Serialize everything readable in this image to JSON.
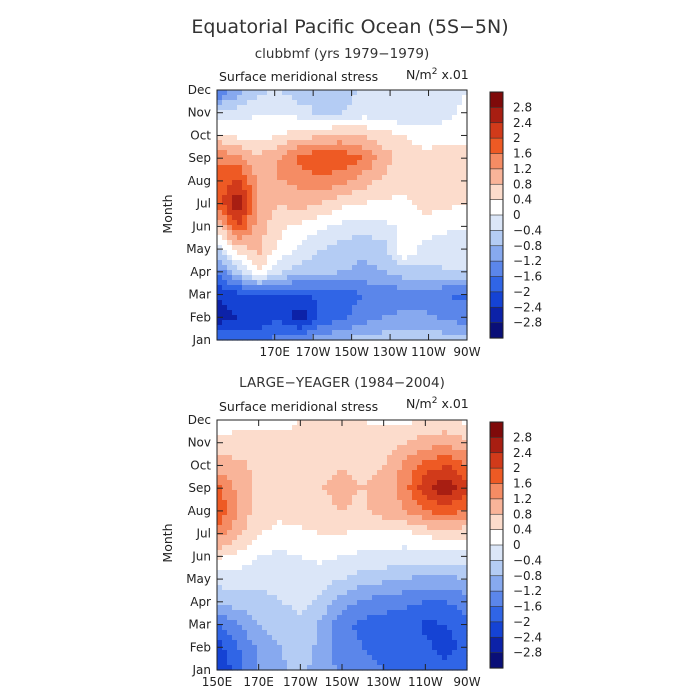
{
  "figure": {
    "title": "Equatorial Pacific Ocean (5S−5N)"
  },
  "legend_colors": [
    "#7f0a0a",
    "#a81e12",
    "#d13a1a",
    "#ee5a24",
    "#f58c64",
    "#f9b499",
    "#fcdccc",
    "#ffffff",
    "#dbe6f8",
    "#b4ccf4",
    "#87a9ef",
    "#5b86ea",
    "#3065e6",
    "#1543d4",
    "#0c22a8",
    "#0a0f78"
  ],
  "chart_data": [
    {
      "type": "heatmap",
      "subtitle": "clubbmf (yrs 1979−1979)",
      "panel_label": "Surface meridional stress",
      "unit_label": "N/m² x.01",
      "ylabel": "Month",
      "xlabel": "",
      "y_ticks": [
        "Jan",
        "Feb",
        "Mar",
        "Apr",
        "May",
        "Jun",
        "Jul",
        "Aug",
        "Sep",
        "Oct",
        "Nov",
        "Dec"
      ],
      "x_tick_labels": [
        "170E",
        "170W",
        "150W",
        "130W",
        "110W",
        "90W"
      ],
      "x_domain_lon": [
        140,
        270
      ],
      "x_tick_lons": [
        170,
        190,
        210,
        230,
        250,
        270
      ],
      "levels": [
        2.8,
        2.4,
        2,
        1.6,
        1.2,
        0.8,
        0.4,
        0,
        -0.4,
        -0.8,
        -1.2,
        -1.6,
        -2,
        -2.4,
        -2.8
      ],
      "level_labels": [
        "2.8",
        "2.4",
        "2",
        "1.6",
        "1.2",
        "0.8",
        "0.4",
        "0",
        "−0.4",
        "−0.8",
        "−1.2",
        "−1.6",
        "−2",
        "−2.4",
        "−2.8"
      ],
      "grid_x_lon": [
        140,
        151,
        162,
        173,
        184,
        195,
        206,
        217,
        228,
        239,
        250,
        261,
        270
      ],
      "grid_y_month": [
        "Jan",
        "Feb",
        "Mar",
        "Apr",
        "May",
        "Jun",
        "Jul",
        "Aug",
        "Sep",
        "Oct",
        "Nov",
        "Dec"
      ],
      "values": [
        [
          -1.6,
          -1.8,
          -1.8,
          -1.4,
          -1.2,
          -1.0,
          -0.8,
          -0.6,
          -0.6,
          -0.5,
          -0.5,
          -0.6,
          -0.7
        ],
        [
          -2.7,
          -2.4,
          -2.2,
          -2.1,
          -2.7,
          -1.9,
          -1.7,
          -1.4,
          -1.2,
          -1.1,
          -1.1,
          -1.3,
          -1.4
        ],
        [
          -2.3,
          -2.1,
          -2.0,
          -2.0,
          -2.0,
          -1.9,
          -1.8,
          -1.6,
          -1.5,
          -1.4,
          -1.4,
          -1.6,
          -1.7
        ],
        [
          -1.5,
          -0.6,
          0.4,
          -0.3,
          -0.6,
          -0.7,
          -0.8,
          -0.9,
          -0.8,
          -0.6,
          -0.5,
          -0.4,
          -0.4
        ],
        [
          -0.4,
          0.6,
          0.9,
          0.3,
          -0.1,
          -0.4,
          -0.6,
          -0.7,
          -0.6,
          0.4,
          -0.2,
          -0.3,
          -0.2
        ],
        [
          0.6,
          2.0,
          1.0,
          0.5,
          0.3,
          0.1,
          -0.1,
          -0.2,
          -0.1,
          0.1,
          0.3,
          0.1,
          0.0
        ],
        [
          1.8,
          2.8,
          1.0,
          0.8,
          1.0,
          0.8,
          0.5,
          0.4,
          0.3,
          0.3,
          0.5,
          0.5,
          0.4
        ],
        [
          1.6,
          2.2,
          1.0,
          1.2,
          1.3,
          1.5,
          1.3,
          1.0,
          0.7,
          0.6,
          0.7,
          0.8,
          0.6
        ],
        [
          1.6,
          1.3,
          0.9,
          1.2,
          1.8,
          2.0,
          1.9,
          1.6,
          1.0,
          0.6,
          0.5,
          0.7,
          0.5
        ],
        [
          0.5,
          0.3,
          0.2,
          0.4,
          0.6,
          0.8,
          0.9,
          0.8,
          0.6,
          0.4,
          0.2,
          0.2,
          0.3
        ],
        [
          -0.2,
          -0.2,
          0.0,
          0.0,
          -0.2,
          -0.5,
          -0.4,
          -0.2,
          -0.3,
          -0.4,
          -0.3,
          -0.1,
          0.1
        ],
        [
          -1.8,
          -1.0,
          -0.5,
          -0.4,
          -0.7,
          -0.5,
          -0.6,
          -0.3,
          -0.2,
          -0.3,
          -0.2,
          -0.1,
          0.0
        ]
      ]
    },
    {
      "type": "heatmap",
      "subtitle": "LARGE−YEAGER (1984−2004)",
      "panel_label": "Surface meridional stress",
      "unit_label": "N/m² x.01",
      "ylabel": "Month",
      "xlabel": "",
      "y_ticks": [
        "Jan",
        "Feb",
        "Mar",
        "Apr",
        "May",
        "Jun",
        "Jul",
        "Aug",
        "Sep",
        "Oct",
        "Nov",
        "Dec"
      ],
      "x_tick_labels": [
        "150E",
        "170E",
        "170W",
        "150W",
        "130W",
        "110W",
        "90W"
      ],
      "x_domain_lon": [
        150,
        270
      ],
      "x_tick_lons": [
        150,
        170,
        190,
        210,
        230,
        250,
        270
      ],
      "levels": [
        2.8,
        2.4,
        2,
        1.6,
        1.2,
        0.8,
        0.4,
        0,
        -0.4,
        -0.8,
        -1.2,
        -1.6,
        -2,
        -2.4,
        -2.8
      ],
      "level_labels": [
        "2.8",
        "2.4",
        "2",
        "1.6",
        "1.2",
        "0.8",
        "0.4",
        "0",
        "−0.4",
        "−0.8",
        "−1.2",
        "−1.6",
        "−2",
        "−2.4",
        "−2.8"
      ],
      "grid_x_lon": [
        150,
        160,
        170,
        180,
        190,
        200,
        210,
        220,
        230,
        240,
        250,
        260,
        270
      ],
      "grid_y_month": [
        "Jan",
        "Feb",
        "Mar",
        "Apr",
        "May",
        "Jun",
        "Jul",
        "Aug",
        "Sep",
        "Oct",
        "Nov",
        "Dec"
      ],
      "values": [
        [
          -2.4,
          -1.8,
          -1.2,
          -0.9,
          -0.7,
          -1.0,
          -1.3,
          -1.5,
          -1.6,
          -1.6,
          -1.7,
          -1.8,
          -1.6
        ],
        [
          -2.2,
          -1.6,
          -1.1,
          -0.8,
          -0.6,
          -0.9,
          -1.4,
          -1.6,
          -1.7,
          -1.7,
          -1.9,
          -2.2,
          -1.8
        ],
        [
          -1.6,
          -1.2,
          -0.8,
          -0.6,
          -0.5,
          -0.9,
          -1.5,
          -1.7,
          -1.8,
          -1.8,
          -2.1,
          -2.0,
          -1.7
        ],
        [
          -0.8,
          -0.6,
          -0.5,
          -0.4,
          -0.3,
          -0.5,
          -1.0,
          -1.3,
          -1.4,
          -1.5,
          -1.6,
          -1.6,
          -1.4
        ],
        [
          -0.2,
          -0.2,
          -0.3,
          -0.3,
          -0.2,
          -0.2,
          -0.4,
          -0.6,
          -0.7,
          -0.8,
          -0.9,
          -0.9,
          -0.8
        ],
        [
          0.5,
          0.3,
          0.0,
          -0.1,
          0.0,
          0.1,
          0.0,
          -0.1,
          -0.1,
          -0.2,
          -0.2,
          -0.2,
          -0.1
        ],
        [
          1.4,
          0.9,
          0.4,
          0.3,
          0.3,
          0.4,
          0.4,
          0.3,
          0.3,
          0.3,
          0.5,
          0.6,
          0.5
        ],
        [
          2.0,
          1.2,
          0.6,
          0.5,
          0.6,
          0.7,
          0.8,
          0.7,
          1.0,
          1.2,
          1.6,
          1.8,
          1.5
        ],
        [
          1.7,
          1.1,
          0.7,
          0.6,
          0.6,
          0.8,
          0.9,
          0.8,
          0.9,
          1.4,
          2.3,
          2.8,
          2.1
        ],
        [
          1.0,
          0.9,
          0.7,
          0.6,
          0.6,
          0.7,
          0.8,
          0.7,
          0.8,
          1.3,
          1.8,
          2.0,
          1.6
        ],
        [
          0.5,
          0.6,
          0.6,
          0.5,
          0.5,
          0.6,
          0.7,
          0.6,
          0.6,
          0.8,
          1.0,
          1.1,
          0.9
        ],
        [
          0.1,
          0.2,
          0.3,
          0.3,
          0.4,
          0.4,
          0.5,
          0.4,
          0.3,
          0.3,
          0.4,
          0.5,
          0.3
        ]
      ]
    }
  ]
}
